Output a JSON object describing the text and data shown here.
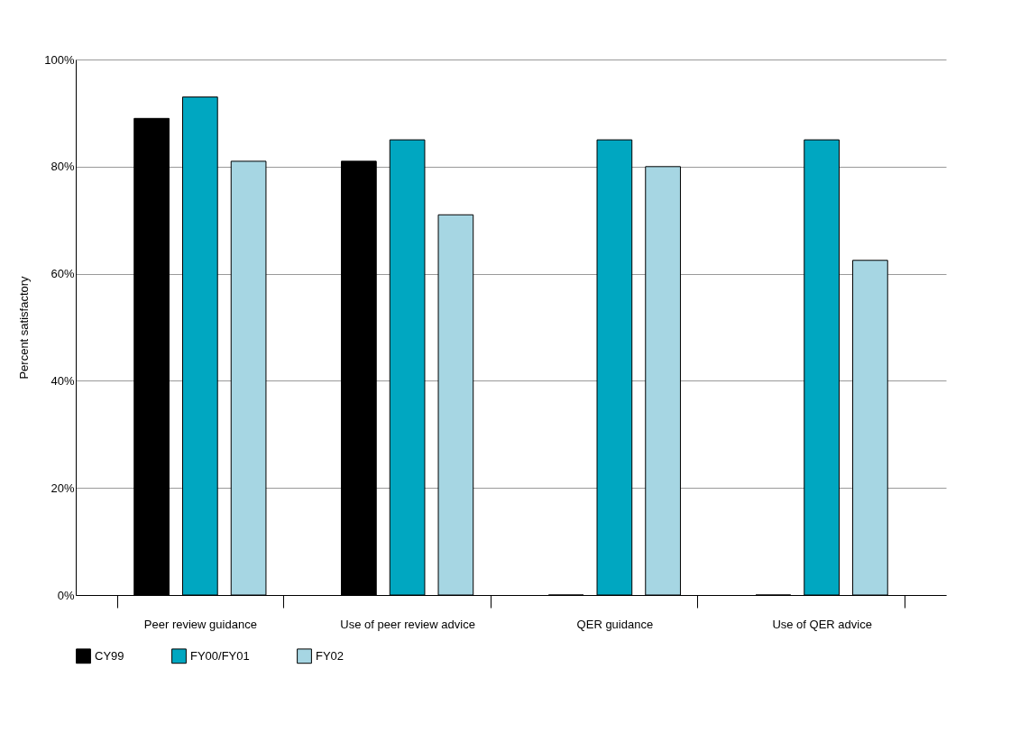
{
  "chart_data": {
    "type": "bar",
    "ylabel": "Percent satisfactory",
    "categories": [
      "Peer review guidance",
      "Use of peer review advice",
      "QER guidance",
      "Use of QER advice"
    ],
    "series": [
      {
        "name": "CY99",
        "color": "#000000",
        "values": [
          89,
          81,
          0,
          0
        ]
      },
      {
        "name": "FY00/FY01",
        "color": "#00a7c1",
        "values": [
          93,
          85,
          85,
          85
        ]
      },
      {
        "name": "FY02",
        "color": "#a6d6e3",
        "values": [
          81,
          71,
          80,
          62.5
        ]
      }
    ],
    "ylim": [
      0,
      100
    ],
    "yticks": [
      {
        "value": 0,
        "label": "0%"
      },
      {
        "value": 20,
        "label": "20%"
      },
      {
        "value": 40,
        "label": "40%"
      },
      {
        "value": 60,
        "label": "60%"
      },
      {
        "value": 80,
        "label": "80%"
      },
      {
        "value": 100,
        "label": "100%"
      }
    ],
    "grid": "y",
    "legend": "bottom left"
  }
}
